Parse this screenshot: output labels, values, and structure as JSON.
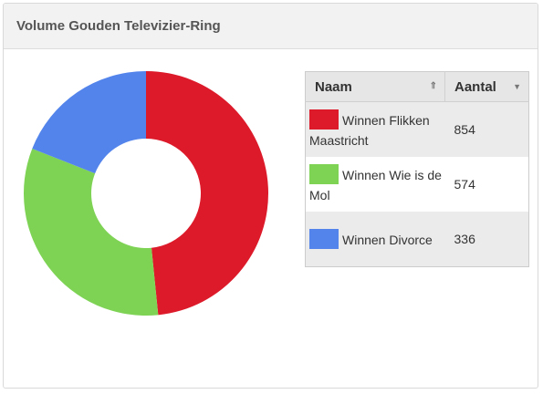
{
  "panel": {
    "title": "Volume Gouden Televizier-Ring"
  },
  "table": {
    "headers": {
      "name": "Naam",
      "count": "Aantal"
    }
  },
  "chart_data": {
    "type": "pie",
    "donut": true,
    "title": "Volume Gouden Televizier-Ring",
    "categories": [
      "Winnen Flikken Maastricht",
      "Winnen Wie is de Mol",
      "Winnen Divorce"
    ],
    "values": [
      854,
      574,
      336
    ],
    "colors": [
      "#dc1a2a",
      "#7ed355",
      "#5384ec"
    ],
    "legend": "right-table"
  }
}
